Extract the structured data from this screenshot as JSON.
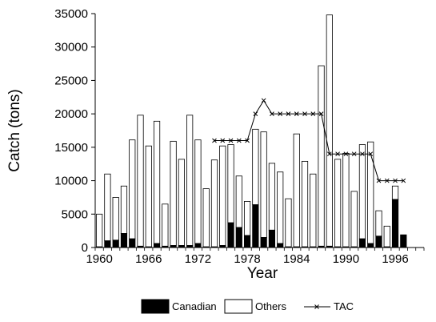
{
  "chart_data": {
    "type": "bar",
    "stacked": true,
    "xlabel": "Year",
    "ylabel": "Catch (tons)",
    "ylim": [
      0,
      35000
    ],
    "yticks": [
      0,
      5000,
      10000,
      15000,
      20000,
      25000,
      30000,
      35000
    ],
    "xlim": [
      1959.5,
      1999.5
    ],
    "xticks": [
      1960,
      1966,
      1972,
      1978,
      1984,
      1990,
      1996
    ],
    "grid": false,
    "legend_position": "bottom",
    "colors": {
      "canadian": "#000000",
      "others": "#ffffff",
      "outline": "#000000",
      "tac": "#000000"
    },
    "years": [
      1960,
      1961,
      1962,
      1963,
      1964,
      1965,
      1966,
      1967,
      1968,
      1969,
      1970,
      1971,
      1972,
      1973,
      1974,
      1975,
      1976,
      1977,
      1978,
      1979,
      1980,
      1981,
      1982,
      1983,
      1984,
      1985,
      1986,
      1987,
      1988,
      1989,
      1990,
      1991,
      1992,
      1993,
      1994,
      1995,
      1996,
      1997
    ],
    "series": [
      {
        "name": "Canadian",
        "values": [
          100,
          1000,
          1100,
          2100,
          1300,
          200,
          100,
          600,
          200,
          300,
          300,
          300,
          600,
          100,
          100,
          300,
          3700,
          3000,
          1800,
          6400,
          1500,
          2600,
          600,
          100,
          100,
          100,
          100,
          200,
          200,
          100,
          100,
          100,
          1300,
          600,
          1700,
          100,
          7200,
          1900
        ]
      },
      {
        "name": "Others",
        "values": [
          4900,
          10000,
          6400,
          7100,
          14800,
          19600,
          15100,
          18300,
          6300,
          15600,
          12900,
          19500,
          15500,
          8700,
          13000,
          14900,
          11700,
          7700,
          5100,
          11300,
          15800,
          10000,
          10700,
          7200,
          16900,
          12800,
          10900,
          27000,
          34600,
          13100,
          14000,
          8300,
          14100,
          15200,
          3800,
          3100,
          2000,
          0
        ]
      }
    ],
    "tac": {
      "name": "TAC",
      "x": [
        1974,
        1975,
        1976,
        1977,
        1978,
        1979,
        1980,
        1981,
        1982,
        1983,
        1984,
        1985,
        1986,
        1987,
        1988,
        1989,
        1990,
        1991,
        1992,
        1993,
        1994,
        1995,
        1996,
        1997
      ],
      "y": [
        16000,
        16000,
        16000,
        16000,
        16000,
        20000,
        22000,
        20000,
        20000,
        20000,
        20000,
        20000,
        20000,
        20000,
        14000,
        14000,
        14000,
        14000,
        14000,
        14000,
        10000,
        10000,
        10000,
        10000
      ]
    }
  }
}
